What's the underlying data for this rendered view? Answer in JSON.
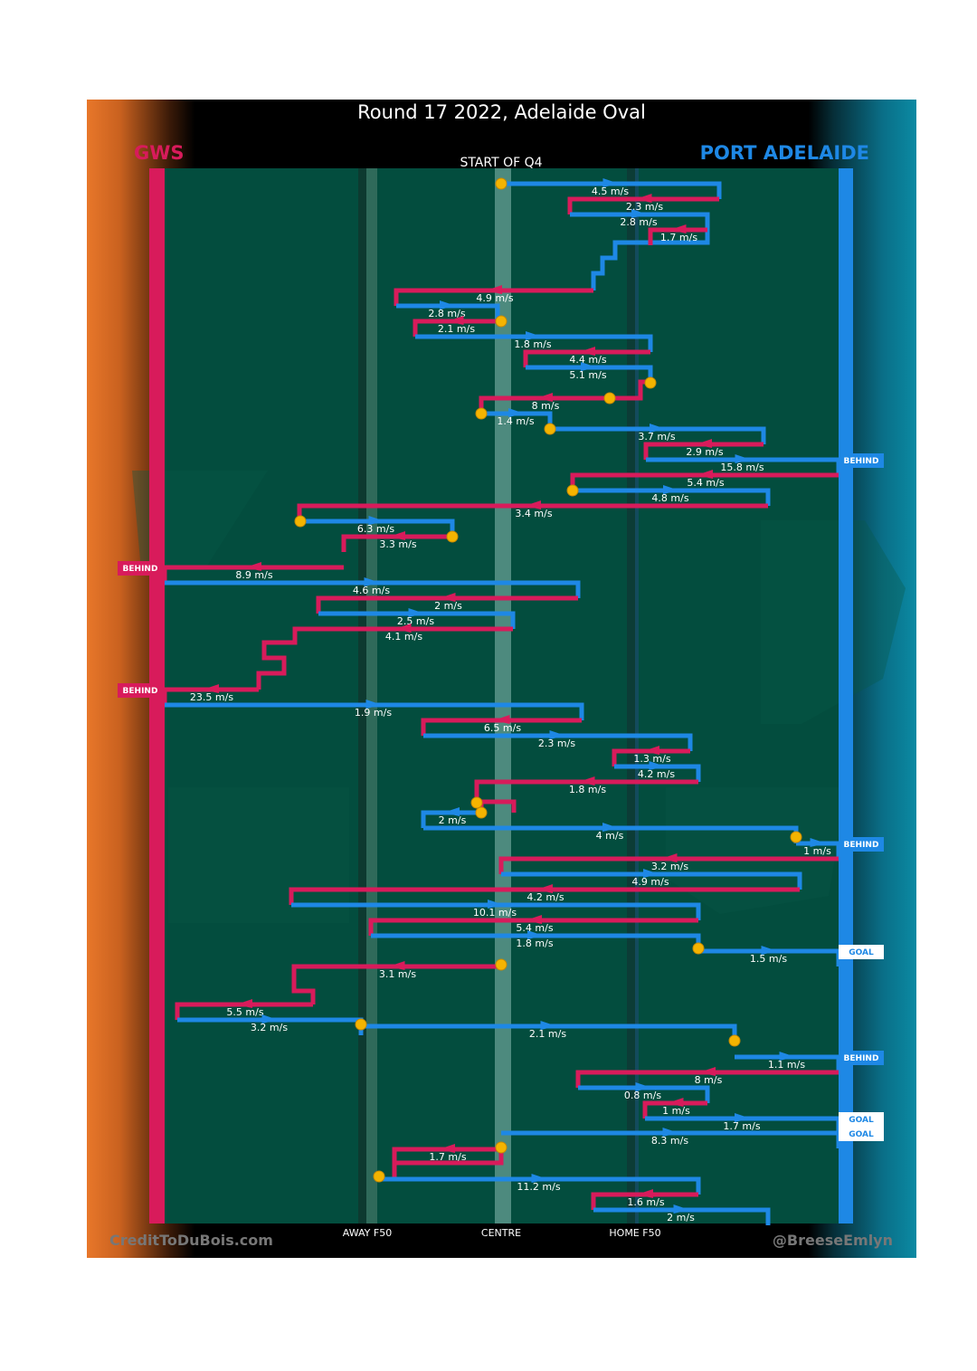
{
  "title": "Round 17 2022, Adelaide Oval",
  "teams": {
    "away": {
      "name": "GWS",
      "color": "#d81b5b"
    },
    "home": {
      "name": "PORT ADELAIDE",
      "color": "#1e88e5"
    }
  },
  "credits": {
    "left": "CreditToDuBois.com",
    "right": "@BreeseEmlyn"
  },
  "chart_data": {
    "type": "line",
    "start_label": "START OF Q4",
    "x_axis_labels": [
      "AWAY F50",
      "CENTRE",
      "HOME F50"
    ],
    "x_range": [
      "GWS goal line",
      "Port Adelaide goal line"
    ],
    "y_direction": "time runs downward",
    "colors": {
      "gws": "#d81b5b",
      "port_adelaide": "#1e88e5",
      "stoppage_marker": "#f4b400",
      "field": "#034d3e"
    },
    "chain_segments": [
      {
        "team": "port_adelaide",
        "speed": "4.5 m/s"
      },
      {
        "team": "gws",
        "speed": "2.3 m/s"
      },
      {
        "team": "port_adelaide",
        "speed": "2.8 m/s"
      },
      {
        "team": "gws",
        "speed": "1.7 m/s"
      },
      {
        "team": "gws",
        "speed": "4.9 m/s"
      },
      {
        "team": "port_adelaide",
        "speed": "2.8 m/s"
      },
      {
        "team": "gws",
        "speed": "2.1 m/s"
      },
      {
        "team": "port_adelaide",
        "speed": "1.8 m/s"
      },
      {
        "team": "gws",
        "speed": "4.4 m/s"
      },
      {
        "team": "port_adelaide",
        "speed": "5.1 m/s"
      },
      {
        "team": "gws",
        "speed": "8 m/s"
      },
      {
        "team": "port_adelaide",
        "speed": "1.4 m/s"
      },
      {
        "team": "port_adelaide",
        "speed": "3.7 m/s"
      },
      {
        "team": "gws",
        "speed": "2.9 m/s"
      },
      {
        "team": "port_adelaide",
        "speed": "15.8 m/s",
        "result": "BEHIND"
      },
      {
        "team": "gws",
        "speed": "5.4 m/s"
      },
      {
        "team": "port_adelaide",
        "speed": "4.8 m/s"
      },
      {
        "team": "gws",
        "speed": "3.4 m/s"
      },
      {
        "team": "port_adelaide",
        "speed": "6.3 m/s"
      },
      {
        "team": "gws",
        "speed": "3.3 m/s"
      },
      {
        "team": "gws",
        "speed": "8.9 m/s",
        "result": "BEHIND"
      },
      {
        "team": "port_adelaide",
        "speed": "4.6 m/s"
      },
      {
        "team": "gws",
        "speed": "2 m/s"
      },
      {
        "team": "port_adelaide",
        "speed": "2.5 m/s"
      },
      {
        "team": "gws",
        "speed": "4.1 m/s"
      },
      {
        "team": "gws",
        "speed": "23.5 m/s",
        "result": "BEHIND"
      },
      {
        "team": "port_adelaide",
        "speed": "1.9 m/s"
      },
      {
        "team": "gws",
        "speed": "6.5 m/s"
      },
      {
        "team": "port_adelaide",
        "speed": "2.3 m/s"
      },
      {
        "team": "gws",
        "speed": "1.3 m/s"
      },
      {
        "team": "port_adelaide",
        "speed": "4.2 m/s"
      },
      {
        "team": "gws",
        "speed": "1.8 m/s"
      },
      {
        "team": "port_adelaide",
        "speed": "2 m/s"
      },
      {
        "team": "port_adelaide",
        "speed": "4 m/s"
      },
      {
        "team": "port_adelaide",
        "speed": "1 m/s",
        "result": "BEHIND"
      },
      {
        "team": "gws",
        "speed": "3.2 m/s"
      },
      {
        "team": "port_adelaide",
        "speed": "4.9 m/s"
      },
      {
        "team": "gws",
        "speed": "4.2 m/s"
      },
      {
        "team": "port_adelaide",
        "speed": "10.1 m/s"
      },
      {
        "team": "gws",
        "speed": "5.4 m/s"
      },
      {
        "team": "port_adelaide",
        "speed": "1.8 m/s"
      },
      {
        "team": "port_adelaide",
        "speed": "1.5 m/s",
        "result": "GOAL"
      },
      {
        "team": "gws",
        "speed": "3.1 m/s"
      },
      {
        "team": "gws",
        "speed": "5.5 m/s"
      },
      {
        "team": "port_adelaide",
        "speed": "3.2 m/s"
      },
      {
        "team": "port_adelaide",
        "speed": "2.1 m/s"
      },
      {
        "team": "port_adelaide",
        "speed": "1.1 m/s",
        "result": "BEHIND"
      },
      {
        "team": "gws",
        "speed": "8 m/s"
      },
      {
        "team": "port_adelaide",
        "speed": "0.8 m/s"
      },
      {
        "team": "gws",
        "speed": "1 m/s"
      },
      {
        "team": "port_adelaide",
        "speed": "1.7 m/s",
        "result": "GOAL"
      },
      {
        "team": "port_adelaide",
        "speed": "8.3 m/s",
        "result": "GOAL"
      },
      {
        "team": "gws",
        "speed": "1.7 m/s"
      },
      {
        "team": "port_adelaide",
        "speed": "11.2 m/s"
      },
      {
        "team": "gws",
        "speed": "1.6 m/s"
      },
      {
        "team": "port_adelaide",
        "speed": "2 m/s"
      }
    ]
  }
}
